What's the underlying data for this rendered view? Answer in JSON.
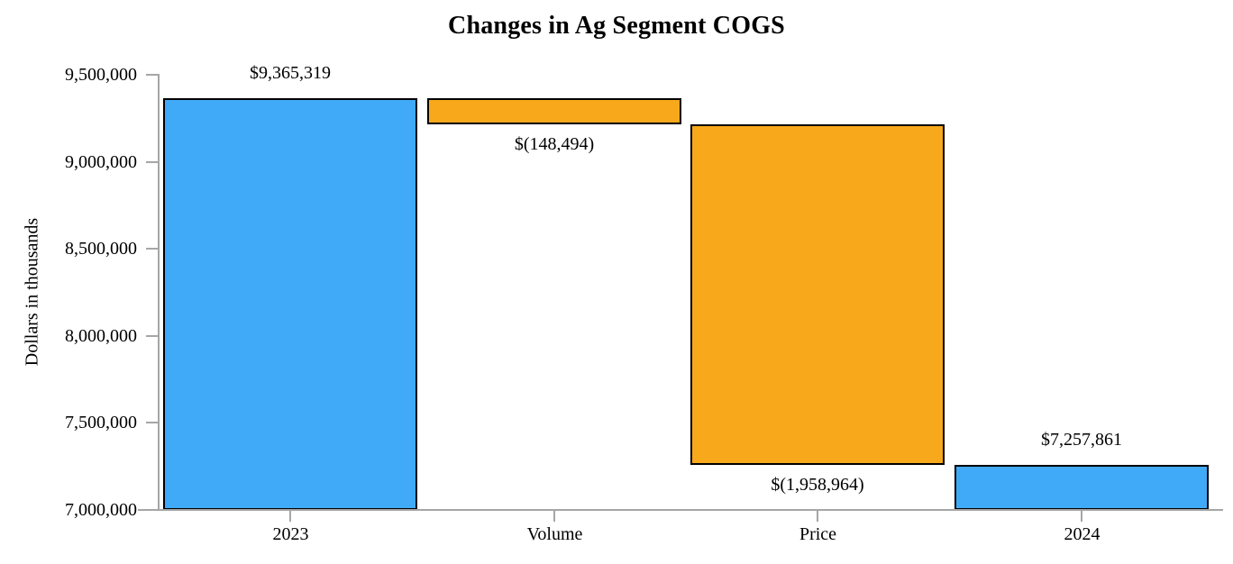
{
  "chart_data": {
    "type": "bar",
    "subtype": "waterfall",
    "title": "Changes in Ag Segment COGS",
    "ylabel": "Dollars in thousands",
    "xlabel": "",
    "ylim": [
      7000000,
      9500000
    ],
    "ytick_step": 500000,
    "grid": false,
    "legend": false,
    "yticks": [
      {
        "value": 9500000,
        "label": "9,500,000"
      },
      {
        "value": 9000000,
        "label": "9,000,000"
      },
      {
        "value": 8500000,
        "label": "8,500,000"
      },
      {
        "value": 8000000,
        "label": "8,000,000"
      },
      {
        "value": 7500000,
        "label": "7,500,000"
      },
      {
        "value": 7000000,
        "label": "7,000,000"
      }
    ],
    "categories": [
      "2023",
      "Volume",
      "Price",
      "2024"
    ],
    "bars": [
      {
        "category": "2023",
        "role": "total",
        "value": 9365319,
        "from": 7000000,
        "to": 9365319,
        "label": "$9,365,319",
        "label_position": "above"
      },
      {
        "category": "Volume",
        "role": "change",
        "value": -148494,
        "from": 9216825,
        "to": 9365319,
        "label": "$(148,494)",
        "label_position": "below"
      },
      {
        "category": "Price",
        "role": "change",
        "value": -1958964,
        "from": 7257861,
        "to": 9216825,
        "label": "$(1,958,964)",
        "label_position": "below"
      },
      {
        "category": "2024",
        "role": "total",
        "value": 7257861,
        "from": 7000000,
        "to": 7257861,
        "label": "$7,257,861",
        "label_position": "above"
      }
    ],
    "colors": {
      "total_bar": "#41AAF8",
      "change_bar": "#F7A81B",
      "bar_border": "#000000",
      "axis": "#A6A6A6",
      "text": "#000000"
    }
  }
}
